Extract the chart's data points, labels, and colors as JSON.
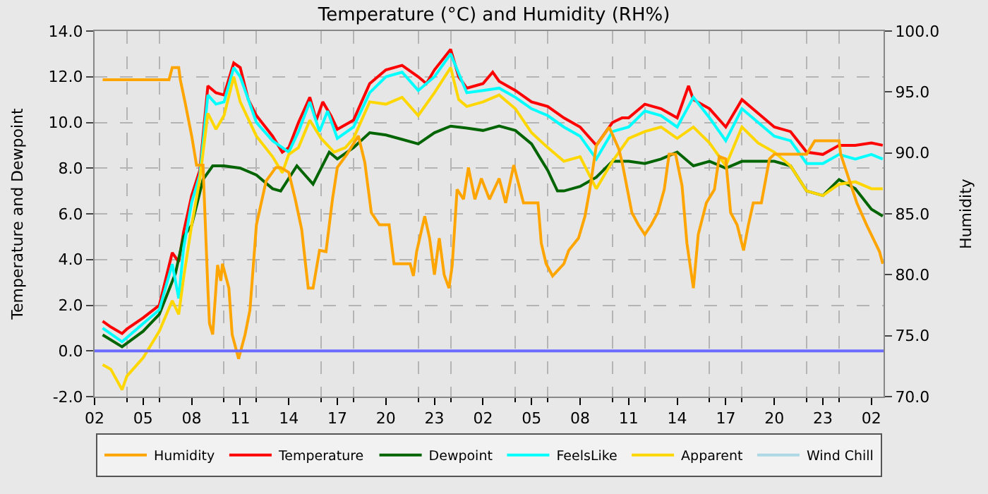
{
  "chart_data": {
    "type": "line",
    "title": "Temperature (°C) and Humidity (RH%)",
    "ylabel": "Temperature and Dewpoint",
    "y2label": "Humidity",
    "xlim": [
      "--01-01T02:00",
      "--01-03T02:45"
    ],
    "xticks": [
      {
        "value": "--01-01T02:00",
        "label": "02"
      },
      {
        "value": "--01-01T05:00",
        "label": "05"
      },
      {
        "value": "--01-01T08:00",
        "label": "08"
      },
      {
        "value": "--01-01T11:00",
        "label": "11"
      },
      {
        "value": "--01-01T14:00",
        "label": "14"
      },
      {
        "value": "--01-01T17:00",
        "label": "17"
      },
      {
        "value": "--01-01T20:00",
        "label": "20"
      },
      {
        "value": "--01-01T23:00",
        "label": "23"
      },
      {
        "value": "--01-02T02:00",
        "label": "02"
      },
      {
        "value": "--01-02T05:00",
        "label": "05"
      },
      {
        "value": "--01-02T08:00",
        "label": "08"
      },
      {
        "value": "--01-02T11:00",
        "label": "11"
      },
      {
        "value": "--01-02T14:00",
        "label": "14"
      },
      {
        "value": "--01-02T17:00",
        "label": "17"
      },
      {
        "value": "--01-02T20:00",
        "label": "20"
      },
      {
        "value": "--01-02T23:00",
        "label": "23"
      },
      {
        "value": "--01-03T02:00",
        "label": "02"
      },
      {
        "value": "--01-01T04:00",
        "label": null
      },
      {
        "value": "--01-01T06:00",
        "label": null
      },
      {
        "value": "--01-01T10:00",
        "label": null
      },
      {
        "value": "--01-01T12:00",
        "label": null
      },
      {
        "value": "--01-01T16:00",
        "label": null
      },
      {
        "value": "--01-01T18:00",
        "label": null
      },
      {
        "value": "--01-01T22:00",
        "label": null
      },
      {
        "value": "--01-02T00:00",
        "label": null
      },
      {
        "value": "--01-02T04:00",
        "label": null
      },
      {
        "value": "--01-02T06:00",
        "label": null
      },
      {
        "value": "--01-02T10:00",
        "label": null
      },
      {
        "value": "--01-02T12:00",
        "label": null
      },
      {
        "value": "--01-02T16:00",
        "label": null
      },
      {
        "value": "--01-02T18:00",
        "label": null
      },
      {
        "value": "--01-02T22:00",
        "label": null
      },
      {
        "value": "--01-03T00:00",
        "label": null
      }
    ],
    "ylim": [
      -2,
      14
    ],
    "yticks": [
      {
        "value": -2,
        "label": "-2.0"
      },
      {
        "value": 0,
        "label": "0.0"
      },
      {
        "value": 2,
        "label": "2.0"
      },
      {
        "value": 4,
        "label": "4.0"
      },
      {
        "value": 6,
        "label": "6.0"
      },
      {
        "value": 8,
        "label": "8.0"
      },
      {
        "value": 10,
        "label": "10.0"
      },
      {
        "value": 12,
        "label": "12.0"
      },
      {
        "value": 14,
        "label": "14.0"
      }
    ],
    "y2lim": [
      70,
      100
    ],
    "y2ticks": [
      {
        "value": 70,
        "label": "70.0"
      },
      {
        "value": 75,
        "label": "75.0"
      },
      {
        "value": 80,
        "label": "80.0"
      },
      {
        "value": 85,
        "label": "85.0"
      },
      {
        "value": 90,
        "label": "90.0"
      },
      {
        "value": 95,
        "label": "95.0"
      },
      {
        "value": 100,
        "label": "100.0"
      }
    ],
    "grid": true,
    "legend": "bottom",
    "marker": "none",
    "line_style": "solid",
    "ref_lines": [
      {
        "axis": "y",
        "value": 0,
        "label": null,
        "color": "#6b6bff"
      }
    ],
    "series": [
      {
        "name": "Humidity",
        "color": "#ffa500",
        "axis": "y2",
        "x": [
          "--01-01T02:30",
          "--01-01T06:36",
          "--01-01T06:48",
          "--01-01T07:12",
          "--01-01T07:18",
          "--01-01T07:36",
          "--01-01T08:00",
          "--01-01T08:18",
          "--01-01T08:42",
          "--01-01T09:00",
          "--01-01T09:06",
          "--01-01T09:18",
          "--01-01T09:36",
          "--01-01T09:48",
          "--01-01T09:54",
          "--01-01T10:18",
          "--01-01T10:30",
          "--01-01T10:54",
          "--01-01T11:18",
          "--01-01T11:36",
          "--01-01T12:00",
          "--01-01T12:36",
          "--01-01T13:12",
          "--01-01T13:30",
          "--01-01T14:00",
          "--01-01T14:24",
          "--01-01T14:48",
          "--01-01T15:12",
          "--01-01T15:30",
          "--01-01T15:54",
          "--01-01T16:18",
          "--01-01T16:42",
          "--01-01T17:00",
          "--01-01T17:36",
          "--01-01T18:18",
          "--01-01T18:42",
          "--01-01T19:06",
          "--01-01T19:36",
          "--01-01T20:12",
          "--01-01T20:30",
          "--01-01T21:30",
          "--01-01T21:42",
          "--01-01T21:54",
          "--01-01T22:24",
          "--01-01T22:42",
          "--01-01T23:00",
          "--01-01T23:18",
          "--01-01T23:36",
          "--01-01T23:54",
          "--01-02T00:06",
          "--01-02T00:24",
          "--01-02T00:48",
          "--01-02T01:06",
          "--01-02T01:30",
          "--01-02T01:54",
          "--01-02T02:24",
          "--01-02T03:00",
          "--01-02T03:24",
          "--01-02T03:54",
          "--01-02T04:30",
          "--01-02T05:24",
          "--01-02T05:36",
          "--01-02T05:54",
          "--01-02T06:18",
          "--01-02T07:00",
          "--01-02T07:18",
          "--01-02T07:54",
          "--01-02T08:18",
          "--01-02T08:36",
          "--01-02T09:00",
          "--01-02T09:48",
          "--01-02T10:24",
          "--01-02T10:36",
          "--01-02T11:12",
          "--01-02T11:36",
          "--01-02T12:00",
          "--01-02T12:24",
          "--01-02T12:48",
          "--01-02T13:12",
          "--01-02T13:30",
          "--01-02T13:54",
          "--01-02T14:18",
          "--01-02T14:36",
          "--01-02T15:00",
          "--01-02T15:18",
          "--01-02T15:48",
          "--01-02T16:18",
          "--01-02T16:36",
          "--01-02T17:00",
          "--01-02T17:18",
          "--01-02T17:42",
          "--01-02T18:06",
          "--01-02T18:24",
          "--01-02T18:42",
          "--01-02T19:12",
          "--01-02T19:42",
          "--01-02T20:00",
          "--01-02T21:00",
          "--01-02T22:00",
          "--01-02T22:30",
          "--01-02T23:00",
          "--01-03T00:00",
          "--01-03T00:06",
          "--01-03T01:06",
          "--01-03T01:42",
          "--01-03T02:06",
          "--01-03T02:30",
          "--01-03T02:42"
        ],
        "values": [
          96.0,
          96.0,
          97.0,
          97.0,
          96.0,
          94.1,
          91.4,
          89.0,
          89.0,
          78.9,
          76.0,
          75.1,
          80.8,
          79.5,
          80.9,
          78.9,
          75.1,
          73.1,
          75.1,
          77.1,
          84.1,
          87.7,
          88.8,
          88.8,
          88.4,
          86.2,
          83.7,
          78.9,
          78.9,
          82.0,
          81.9,
          86.2,
          88.8,
          89.9,
          91.4,
          89.2,
          85.1,
          84.1,
          84.1,
          80.9,
          80.9,
          79.9,
          81.9,
          84.8,
          83.0,
          80.0,
          83.0,
          80.0,
          78.9,
          80.8,
          87.0,
          86.2,
          88.8,
          86.2,
          87.9,
          86.2,
          87.9,
          85.9,
          89.0,
          85.9,
          85.9,
          82.6,
          80.9,
          79.9,
          80.9,
          82.0,
          83.0,
          84.8,
          87.0,
          90.6,
          92.1,
          90.3,
          89.2,
          85.1,
          84.1,
          83.3,
          84.1,
          85.1,
          87.0,
          89.9,
          89.9,
          87.3,
          82.6,
          78.9,
          83.3,
          85.9,
          87.0,
          89.7,
          89.5,
          85.1,
          84.1,
          82.0,
          84.1,
          85.9,
          85.9,
          89.5,
          89.9,
          89.9,
          89.9,
          91.0,
          91.0,
          91.0,
          89.9,
          85.9,
          84.1,
          83.0,
          81.9,
          80.9
        ]
      },
      {
        "name": "Temperature",
        "color": "#ff0000",
        "x": [
          "--01-01T02:30",
          "--01-01T03:00",
          "--01-01T03:42",
          "--01-01T04:00",
          "--01-01T05:00",
          "--01-01T06:00",
          "--01-01T06:48",
          "--01-01T07:12",
          "--01-01T07:30",
          "--01-01T08:00",
          "--01-01T08:30",
          "--01-01T09:00",
          "--01-01T09:30",
          "--01-01T10:00",
          "--01-01T10:36",
          "--01-01T11:00",
          "--01-01T11:30",
          "--01-01T12:00",
          "--01-01T13:00",
          "--01-01T13:36",
          "--01-01T14:00",
          "--01-01T14:36",
          "--01-01T15:18",
          "--01-01T15:42",
          "--01-01T16:06",
          "--01-01T16:36",
          "--01-01T17:00",
          "--01-01T18:00",
          "--01-01T19:00",
          "--01-01T20:00",
          "--01-01T21:00",
          "--01-01T22:00",
          "--01-01T22:30",
          "--01-01T23:00",
          "--01-02T00:00",
          "--01-02T00:30",
          "--01-02T01:00",
          "--01-02T02:00",
          "--01-02T02:36",
          "--01-02T03:00",
          "--01-02T04:00",
          "--01-02T05:00",
          "--01-02T06:00",
          "--01-02T07:00",
          "--01-02T08:00",
          "--01-02T09:00",
          "--01-02T10:00",
          "--01-02T10:36",
          "--01-02T11:00",
          "--01-02T12:00",
          "--01-02T13:00",
          "--01-02T14:00",
          "--01-02T14:42",
          "--01-02T15:00",
          "--01-02T16:00",
          "--01-02T17:00",
          "--01-02T18:00",
          "--01-02T19:00",
          "--01-02T20:00",
          "--01-02T21:00",
          "--01-02T22:00",
          "--01-02T23:00",
          "--01-03T00:00",
          "--01-03T01:00",
          "--01-03T02:00",
          "--01-03T02:42"
        ],
        "values": [
          1.3,
          1.05,
          0.76,
          0.96,
          1.45,
          2.0,
          4.3,
          3.9,
          5.2,
          6.8,
          7.9,
          11.6,
          11.3,
          11.2,
          12.6,
          12.4,
          11.0,
          10.3,
          9.4,
          8.7,
          8.9,
          10.0,
          11.1,
          10.1,
          10.9,
          10.3,
          9.7,
          10.1,
          11.7,
          12.3,
          12.5,
          12.0,
          11.7,
          12.3,
          13.2,
          12.0,
          11.5,
          11.7,
          12.2,
          11.8,
          11.4,
          10.9,
          10.7,
          10.2,
          9.8,
          9.0,
          10.0,
          10.2,
          10.2,
          10.8,
          10.6,
          10.2,
          11.6,
          11.0,
          10.6,
          9.8,
          11.0,
          10.4,
          9.8,
          9.6,
          8.7,
          8.6,
          9.0,
          9.0,
          9.1,
          9.0
        ]
      },
      {
        "name": "Dewpoint",
        "color": "#006400",
        "x": [
          "--01-01T02:30",
          "--01-01T03:42",
          "--01-01T05:00",
          "--01-01T06:00",
          "--01-01T07:00",
          "--01-01T07:30",
          "--01-01T08:00",
          "--01-01T08:42",
          "--01-01T09:18",
          "--01-01T10:00",
          "--01-01T11:00",
          "--01-01T12:00",
          "--01-01T13:00",
          "--01-01T13:30",
          "--01-01T14:30",
          "--01-01T15:30",
          "--01-01T16:30",
          "--01-01T17:00",
          "--01-01T18:00",
          "--01-01T19:00",
          "--01-01T20:00",
          "--01-01T21:00",
          "--01-01T22:00",
          "--01-01T23:00",
          "--01-02T00:00",
          "--01-02T01:00",
          "--01-02T02:00",
          "--01-02T03:00",
          "--01-02T04:00",
          "--01-02T05:00",
          "--01-02T06:00",
          "--01-02T06:36",
          "--01-02T07:00",
          "--01-02T08:00",
          "--01-02T09:00",
          "--01-02T10:00",
          "--01-02T11:00",
          "--01-02T12:00",
          "--01-02T13:00",
          "--01-02T14:00",
          "--01-02T15:00",
          "--01-02T16:00",
          "--01-02T17:00",
          "--01-02T18:00",
          "--01-02T19:00",
          "--01-02T20:00",
          "--01-02T21:00",
          "--01-02T22:00",
          "--01-02T23:00",
          "--01-03T00:00",
          "--01-03T01:00",
          "--01-03T02:00",
          "--01-03T02:42"
        ],
        "values": [
          0.7,
          0.18,
          0.86,
          1.6,
          3.4,
          5.0,
          5.5,
          7.5,
          8.1,
          8.1,
          8.0,
          7.7,
          7.1,
          7.0,
          8.1,
          7.3,
          8.7,
          8.4,
          8.9,
          9.55,
          9.45,
          9.26,
          9.06,
          9.55,
          9.84,
          9.75,
          9.65,
          9.84,
          9.65,
          9.06,
          7.9,
          7.0,
          7.0,
          7.2,
          7.6,
          8.3,
          8.3,
          8.2,
          8.4,
          8.7,
          8.1,
          8.3,
          8.0,
          8.3,
          8.3,
          8.3,
          8.1,
          7.0,
          6.8,
          7.5,
          7.1,
          6.2,
          5.9
        ]
      },
      {
        "name": "FeelsLike",
        "color": "#00ffff",
        "x": [
          "--01-01T02:30",
          "--01-01T03:42",
          "--01-01T05:00",
          "--01-01T06:00",
          "--01-01T06:48",
          "--01-01T07:12",
          "--01-01T07:30",
          "--01-01T08:00",
          "--01-01T08:30",
          "--01-01T09:00",
          "--01-01T09:30",
          "--01-01T10:00",
          "--01-01T10:36",
          "--01-01T11:00",
          "--01-01T12:00",
          "--01-01T13:00",
          "--01-01T14:00",
          "--01-01T14:36",
          "--01-01T15:18",
          "--01-01T15:54",
          "--01-01T16:24",
          "--01-01T17:00",
          "--01-01T18:00",
          "--01-01T19:00",
          "--01-01T20:00",
          "--01-01T21:00",
          "--01-01T22:00",
          "--01-01T23:00",
          "--01-02T00:00",
          "--01-02T01:00",
          "--01-02T02:00",
          "--01-02T03:00",
          "--01-02T04:00",
          "--01-02T05:00",
          "--01-02T06:00",
          "--01-02T07:00",
          "--01-02T08:00",
          "--01-02T09:00",
          "--01-02T10:00",
          "--01-02T11:00",
          "--01-02T12:00",
          "--01-02T13:00",
          "--01-02T14:00",
          "--01-02T15:00",
          "--01-02T16:00",
          "--01-02T17:00",
          "--01-02T18:00",
          "--01-02T19:00",
          "--01-02T20:00",
          "--01-02T21:00",
          "--01-02T22:00",
          "--01-02T23:00",
          "--01-03T00:00",
          "--01-03T01:00",
          "--01-03T02:00",
          "--01-03T02:42"
        ],
        "values": [
          1.0,
          0.4,
          1.2,
          1.8,
          3.8,
          2.3,
          4.5,
          6.5,
          7.7,
          11.2,
          10.8,
          10.9,
          12.4,
          12.0,
          10.0,
          9.2,
          8.7,
          9.6,
          10.9,
          9.6,
          10.5,
          9.3,
          9.8,
          11.3,
          12.0,
          12.2,
          11.4,
          12.0,
          13.0,
          11.3,
          11.4,
          11.5,
          11.1,
          10.6,
          10.3,
          9.8,
          9.4,
          8.4,
          9.6,
          9.8,
          10.5,
          10.3,
          9.8,
          11.1,
          10.2,
          9.2,
          10.6,
          10.0,
          9.4,
          9.2,
          8.2,
          8.2,
          8.6,
          8.4,
          8.6,
          8.4
        ]
      },
      {
        "name": "Apparent",
        "color": "#ffd700",
        "x": [
          "--01-01T02:30",
          "--01-01T03:00",
          "--01-01T03:42",
          "--01-01T04:00",
          "--01-01T05:00",
          "--01-01T06:00",
          "--01-01T06:48",
          "--01-01T07:12",
          "--01-01T07:30",
          "--01-01T08:00",
          "--01-01T08:30",
          "--01-01T09:00",
          "--01-01T09:30",
          "--01-01T10:00",
          "--01-01T10:36",
          "--01-01T11:00",
          "--01-01T12:00",
          "--01-01T13:00",
          "--01-01T13:36",
          "--01-01T14:00",
          "--01-01T14:36",
          "--01-01T15:18",
          "--01-01T16:00",
          "--01-01T16:48",
          "--01-01T17:30",
          "--01-01T18:00",
          "--01-01T19:00",
          "--01-01T20:00",
          "--01-01T21:00",
          "--01-01T22:00",
          "--01-01T23:00",
          "--01-02T00:00",
          "--01-02T00:30",
          "--01-02T01:00",
          "--01-02T02:00",
          "--01-02T03:00",
          "--01-02T04:00",
          "--01-02T05:00",
          "--01-02T06:00",
          "--01-02T07:00",
          "--01-02T08:00",
          "--01-02T09:00",
          "--01-02T10:00",
          "--01-02T11:00",
          "--01-02T12:00",
          "--01-02T13:00",
          "--01-02T14:00",
          "--01-02T15:00",
          "--01-02T16:00",
          "--01-02T17:00",
          "--01-02T18:00",
          "--01-02T19:00",
          "--01-02T20:00",
          "--01-02T21:00",
          "--01-02T22:00",
          "--01-02T23:00",
          "--01-03T00:00",
          "--01-03T01:00",
          "--01-03T02:00",
          "--01-03T02:42"
        ],
        "values": [
          -0.6,
          -0.8,
          -1.7,
          -1.1,
          -0.3,
          0.86,
          2.2,
          1.6,
          3.2,
          5.5,
          7.5,
          10.4,
          9.7,
          10.3,
          12.0,
          10.9,
          9.4,
          8.5,
          7.8,
          8.6,
          8.9,
          10.1,
          9.3,
          8.7,
          8.9,
          9.3,
          10.9,
          10.8,
          11.1,
          10.3,
          11.3,
          12.4,
          11.0,
          10.7,
          10.9,
          11.2,
          10.6,
          9.55,
          8.9,
          8.3,
          8.5,
          7.1,
          8.3,
          9.3,
          9.6,
          9.8,
          9.3,
          9.8,
          9.1,
          8.1,
          9.8,
          9.1,
          8.7,
          8.1,
          7.0,
          6.8,
          7.3,
          7.4,
          7.1,
          7.1
        ]
      },
      {
        "name": "Wind Chill",
        "color": "#add8e6"
      }
    ]
  }
}
